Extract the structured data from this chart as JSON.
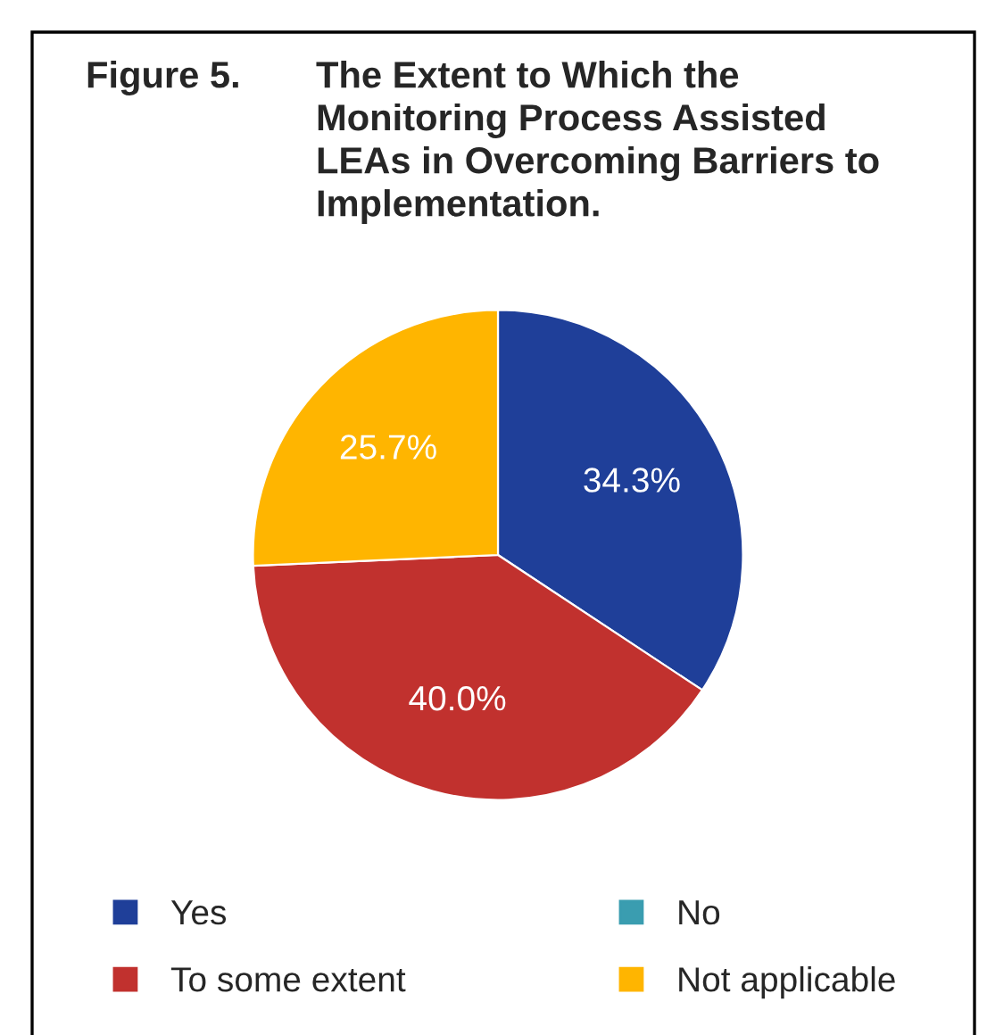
{
  "chart_data": {
    "type": "pie",
    "title": "The Extent to Which the\nMonitoring Process Assisted\nLEAs in Overcoming Barriers to\nImplementation.",
    "annotations": [
      "Figure 5."
    ],
    "categories": [
      "Yes",
      "To some extent",
      "No",
      "Not applicable"
    ],
    "values": [
      34.3,
      40.0,
      0,
      25.7
    ],
    "value_labels": [
      "34.3%",
      "40.0%",
      null,
      "25.7%"
    ],
    "colors": [
      "#1f3f99",
      "#c1312e",
      "#3a9db0",
      "#ffb500"
    ],
    "legend": "bottom"
  }
}
